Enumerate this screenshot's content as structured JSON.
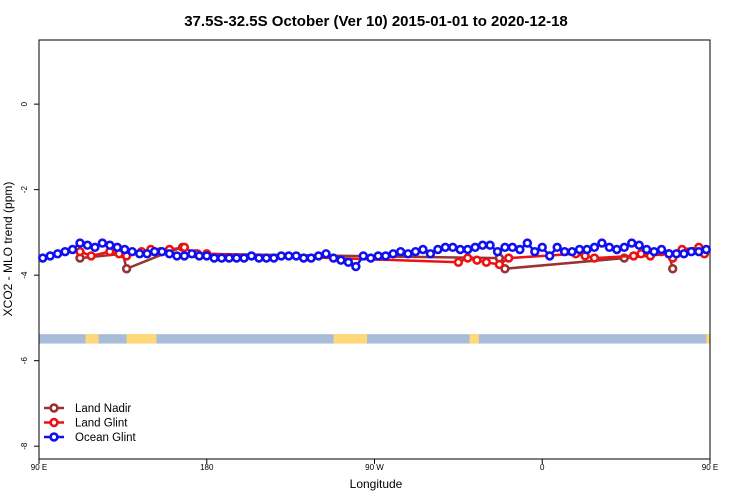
{
  "chart_data": {
    "type": "line",
    "title": "37.5S-32.5S October (Ver 10)   2015-01-01 to 2020-12-18",
    "xlabel": "Longitude",
    "ylabel": "XCO2 - MLO trend (ppm)",
    "xlim": [
      90,
      450
    ],
    "ylim": [
      -8.3,
      1.5
    ],
    "x_ticks": [
      {
        "value": 90,
        "label": "90 E"
      },
      {
        "value": 180,
        "label": "180"
      },
      {
        "value": 270,
        "label": "90 W"
      },
      {
        "value": 360,
        "label": "0"
      },
      {
        "value": 450,
        "label": "90 E"
      },
      {
        "value": 540,
        "label": "180"
      }
    ],
    "y_ticks": [
      {
        "value": 0,
        "label": "0"
      },
      {
        "value": -2,
        "label": "-2"
      },
      {
        "value": -4,
        "label": "-4"
      },
      {
        "value": -6,
        "label": "-6"
      },
      {
        "value": -8,
        "label": "-8"
      }
    ],
    "grid": false,
    "legend_position": "bottom-left",
    "map_strip": {
      "y_range": [
        -5.38,
        -5.6
      ],
      "ocean_color": "#a8bcd8",
      "land_color": "#ffd87a",
      "land_bands": [
        [
          115,
          122
        ],
        [
          137,
          153
        ],
        [
          248,
          266
        ],
        [
          321,
          326
        ],
        [
          448,
          460
        ],
        [
          562,
          579
        ]
      ]
    },
    "series": [
      {
        "name": "Land Nadir",
        "color": "#993333",
        "x": [
          112,
          135,
          137,
          160,
          167,
          175,
          337,
          340,
          404,
          428,
          430
        ],
        "y": [
          -3.6,
          -3.5,
          -3.85,
          -3.45,
          -3.35,
          -3.5,
          -3.6,
          -3.85,
          -3.6,
          -3.5,
          -3.85
        ]
      },
      {
        "name": "Land Glint",
        "color": "#ee1111",
        "x": [
          112,
          118,
          128,
          133,
          137,
          145,
          150,
          155,
          160,
          168,
          174,
          180,
          315,
          320,
          325,
          330,
          337,
          342,
          378,
          383,
          388,
          409,
          413,
          418,
          424,
          428,
          430,
          435,
          444,
          447
        ],
        "y": [
          -3.45,
          -3.55,
          -3.45,
          -3.5,
          -3.55,
          -3.45,
          -3.4,
          -3.45,
          -3.4,
          -3.35,
          -3.5,
          -3.5,
          -3.7,
          -3.6,
          -3.65,
          -3.7,
          -3.75,
          -3.6,
          -3.5,
          -3.55,
          -3.6,
          -3.55,
          -3.5,
          -3.55,
          -3.45,
          -3.5,
          -3.6,
          -3.4,
          -3.35,
          -3.5
        ]
      },
      {
        "name": "Ocean Glint",
        "color": "#1010ee",
        "x": [
          92,
          96,
          100,
          104,
          108,
          112,
          116,
          120,
          124,
          128,
          132,
          136,
          140,
          144,
          148,
          152,
          156,
          160,
          164,
          168,
          172,
          176,
          180,
          184,
          188,
          192,
          196,
          200,
          204,
          208,
          212,
          216,
          220,
          224,
          228,
          232,
          236,
          240,
          244,
          248,
          252,
          256,
          260,
          264,
          268,
          272,
          276,
          280,
          284,
          288,
          292,
          296,
          300,
          304,
          308,
          312,
          316,
          320,
          324,
          328,
          332,
          336,
          340,
          344,
          348,
          352,
          356,
          360,
          364,
          368,
          372,
          376,
          380,
          384,
          388,
          392,
          396,
          400,
          404,
          408,
          412,
          416,
          420,
          424,
          428,
          432,
          436,
          440,
          444,
          448
        ],
        "y": [
          -3.6,
          -3.55,
          -3.5,
          -3.45,
          -3.4,
          -3.25,
          -3.3,
          -3.35,
          -3.25,
          -3.3,
          -3.35,
          -3.4,
          -3.45,
          -3.5,
          -3.5,
          -3.45,
          -3.45,
          -3.5,
          -3.55,
          -3.55,
          -3.5,
          -3.55,
          -3.55,
          -3.6,
          -3.6,
          -3.6,
          -3.6,
          -3.6,
          -3.55,
          -3.6,
          -3.6,
          -3.6,
          -3.55,
          -3.55,
          -3.55,
          -3.6,
          -3.6,
          -3.55,
          -3.5,
          -3.6,
          -3.65,
          -3.7,
          -3.8,
          -3.55,
          -3.6,
          -3.55,
          -3.55,
          -3.5,
          -3.45,
          -3.5,
          -3.45,
          -3.4,
          -3.5,
          -3.4,
          -3.35,
          -3.35,
          -3.4,
          -3.4,
          -3.35,
          -3.3,
          -3.3,
          -3.45,
          -3.35,
          -3.35,
          -3.4,
          -3.25,
          -3.45,
          -3.35,
          -3.55,
          -3.35,
          -3.45,
          -3.45,
          -3.4,
          -3.4,
          -3.35,
          -3.25,
          -3.35,
          -3.4,
          -3.35,
          -3.25,
          -3.3,
          -3.4,
          -3.45,
          -3.4,
          -3.5,
          -3.5,
          -3.5,
          -3.45,
          -3.45,
          -3.4
        ]
      }
    ]
  }
}
